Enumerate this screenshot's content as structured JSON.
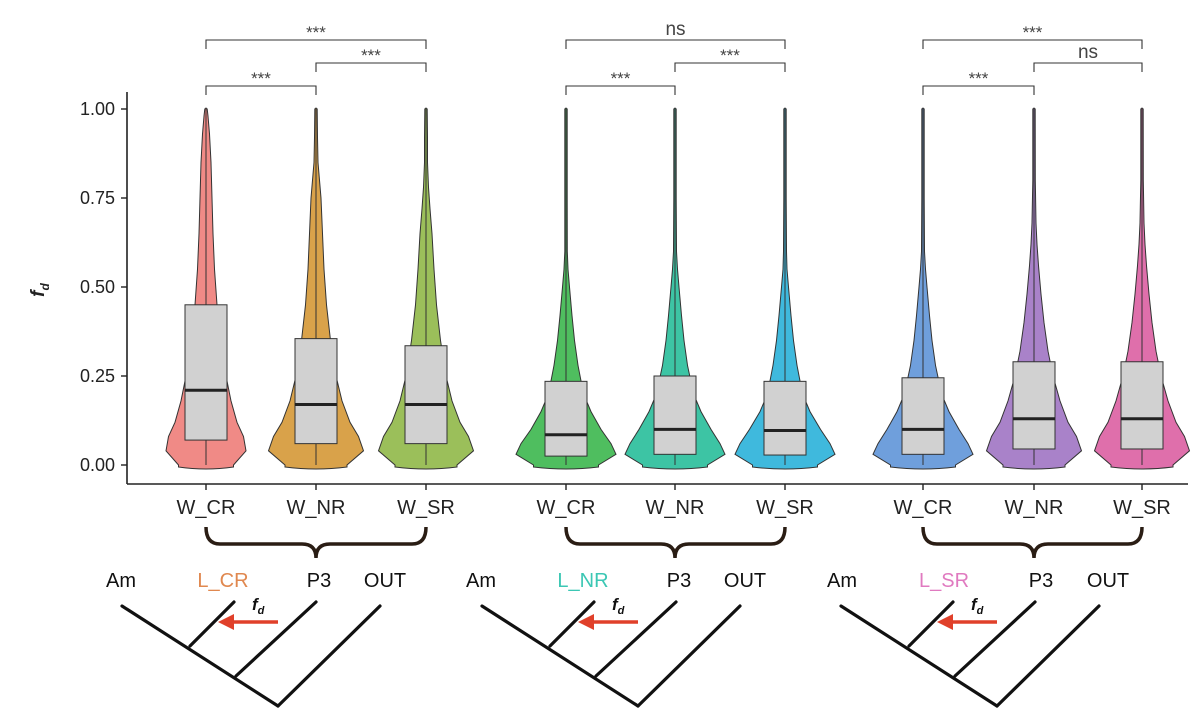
{
  "chart_data": {
    "type": "violin",
    "ylabel": "f",
    "ylabel_sub": "d",
    "ylim": [
      0,
      1
    ],
    "yticks": [
      "0.00",
      "0.25",
      "0.50",
      "0.75",
      "1.00"
    ],
    "ytick_values": [
      0,
      0.25,
      0.5,
      0.75,
      1.0
    ],
    "groups": [
      {
        "violins": [
          {
            "label": "W_CR",
            "color": "#f08a86",
            "q1": 0.07,
            "median": 0.21,
            "q3": 0.45,
            "whisker_top": 1.0,
            "whisker_bottom": 0.0,
            "density": [
              [
                0.0,
                0.55
              ],
              [
                0.04,
                0.8
              ],
              [
                0.08,
                0.75
              ],
              [
                0.12,
                0.62
              ],
              [
                0.18,
                0.5
              ],
              [
                0.25,
                0.4
              ],
              [
                0.35,
                0.3
              ],
              [
                0.45,
                0.22
              ],
              [
                0.55,
                0.17
              ],
              [
                0.65,
                0.14
              ],
              [
                0.75,
                0.12
              ],
              [
                0.85,
                0.1
              ],
              [
                0.93,
                0.07
              ],
              [
                0.98,
                0.04
              ],
              [
                1.0,
                0.01
              ]
            ]
          },
          {
            "label": "W_NR",
            "color": "#d9a24a",
            "q1": 0.06,
            "median": 0.17,
            "q3": 0.355,
            "whisker_top": 1.0,
            "whisker_bottom": 0.0,
            "density": [
              [
                0.0,
                0.62
              ],
              [
                0.04,
                0.95
              ],
              [
                0.08,
                0.85
              ],
              [
                0.12,
                0.68
              ],
              [
                0.18,
                0.52
              ],
              [
                0.25,
                0.4
              ],
              [
                0.35,
                0.29
              ],
              [
                0.45,
                0.21
              ],
              [
                0.55,
                0.16
              ],
              [
                0.65,
                0.13
              ],
              [
                0.75,
                0.1
              ],
              [
                0.8,
                0.07
              ],
              [
                0.85,
                0.04
              ],
              [
                0.92,
                0.03
              ],
              [
                1.0,
                0.02
              ]
            ]
          },
          {
            "label": "W_SR",
            "color": "#9bbf5a",
            "q1": 0.06,
            "median": 0.17,
            "q3": 0.335,
            "whisker_top": 1.0,
            "whisker_bottom": 0.0,
            "density": [
              [
                0.0,
                0.62
              ],
              [
                0.04,
                0.95
              ],
              [
                0.08,
                0.85
              ],
              [
                0.12,
                0.68
              ],
              [
                0.18,
                0.52
              ],
              [
                0.25,
                0.4
              ],
              [
                0.35,
                0.29
              ],
              [
                0.45,
                0.21
              ],
              [
                0.55,
                0.16
              ],
              [
                0.65,
                0.12
              ],
              [
                0.72,
                0.08
              ],
              [
                0.78,
                0.05
              ],
              [
                0.85,
                0.03
              ],
              [
                0.92,
                0.03
              ],
              [
                1.0,
                0.02
              ]
            ]
          }
        ],
        "comparisons": [
          {
            "from": 0,
            "to": 2,
            "label": "***",
            "level": 1
          },
          {
            "from": 1,
            "to": 2,
            "label": "***",
            "level": 2
          },
          {
            "from": 0,
            "to": 1,
            "label": "***",
            "level": 3
          }
        ],
        "tree": {
          "labels": [
            "Am",
            "L_CR",
            "P3",
            "OUT"
          ],
          "highlight_color": "#e0884f",
          "arrow_label": "f",
          "arrow_label_sub": "d"
        }
      },
      {
        "violins": [
          {
            "label": "W_CR",
            "color": "#4fbe5f",
            "q1": 0.025,
            "median": 0.085,
            "q3": 0.235,
            "whisker_top": 1.0,
            "whisker_bottom": 0.0,
            "density": [
              [
                0.0,
                0.65
              ],
              [
                0.03,
                1.0
              ],
              [
                0.06,
                0.9
              ],
              [
                0.1,
                0.7
              ],
              [
                0.15,
                0.5
              ],
              [
                0.2,
                0.35
              ],
              [
                0.28,
                0.24
              ],
              [
                0.35,
                0.17
              ],
              [
                0.42,
                0.12
              ],
              [
                0.5,
                0.07
              ],
              [
                0.55,
                0.04
              ],
              [
                0.6,
                0.025
              ],
              [
                0.75,
                0.02
              ],
              [
                1.0,
                0.015
              ]
            ]
          },
          {
            "label": "W_NR",
            "color": "#3dc4a4",
            "q1": 0.03,
            "median": 0.1,
            "q3": 0.25,
            "whisker_top": 1.0,
            "whisker_bottom": 0.0,
            "density": [
              [
                0.0,
                0.65
              ],
              [
                0.03,
                1.0
              ],
              [
                0.06,
                0.9
              ],
              [
                0.1,
                0.72
              ],
              [
                0.15,
                0.52
              ],
              [
                0.2,
                0.37
              ],
              [
                0.28,
                0.25
              ],
              [
                0.35,
                0.18
              ],
              [
                0.42,
                0.13
              ],
              [
                0.5,
                0.08
              ],
              [
                0.55,
                0.05
              ],
              [
                0.6,
                0.03
              ],
              [
                0.75,
                0.02
              ],
              [
                1.0,
                0.015
              ]
            ]
          },
          {
            "label": "W_SR",
            "color": "#3fb9dd",
            "q1": 0.028,
            "median": 0.097,
            "q3": 0.235,
            "whisker_top": 1.0,
            "whisker_bottom": 0.0,
            "density": [
              [
                0.0,
                0.65
              ],
              [
                0.03,
                1.0
              ],
              [
                0.06,
                0.9
              ],
              [
                0.1,
                0.71
              ],
              [
                0.15,
                0.5
              ],
              [
                0.2,
                0.35
              ],
              [
                0.28,
                0.24
              ],
              [
                0.35,
                0.17
              ],
              [
                0.42,
                0.12
              ],
              [
                0.5,
                0.07
              ],
              [
                0.55,
                0.04
              ],
              [
                0.6,
                0.03
              ],
              [
                0.75,
                0.02
              ],
              [
                1.0,
                0.015
              ]
            ]
          }
        ],
        "comparisons": [
          {
            "from": 0,
            "to": 2,
            "label": "ns",
            "level": 1
          },
          {
            "from": 1,
            "to": 2,
            "label": "***",
            "level": 2
          },
          {
            "from": 0,
            "to": 1,
            "label": "***",
            "level": 3
          }
        ],
        "tree": {
          "labels": [
            "Am",
            "L_NR",
            "P3",
            "OUT"
          ],
          "highlight_color": "#3cc7b4",
          "arrow_label": "f",
          "arrow_label_sub": "d"
        }
      },
      {
        "violins": [
          {
            "label": "W_CR",
            "color": "#6f9fdc",
            "q1": 0.03,
            "median": 0.1,
            "q3": 0.245,
            "whisker_top": 1.0,
            "whisker_bottom": 0.0,
            "density": [
              [
                0.0,
                0.65
              ],
              [
                0.03,
                1.0
              ],
              [
                0.06,
                0.9
              ],
              [
                0.1,
                0.72
              ],
              [
                0.15,
                0.52
              ],
              [
                0.2,
                0.37
              ],
              [
                0.28,
                0.25
              ],
              [
                0.35,
                0.18
              ],
              [
                0.42,
                0.13
              ],
              [
                0.5,
                0.08
              ],
              [
                0.55,
                0.05
              ],
              [
                0.6,
                0.03
              ],
              [
                0.75,
                0.02
              ],
              [
                1.0,
                0.015
              ]
            ]
          },
          {
            "label": "W_NR",
            "color": "#a982c9",
            "q1": 0.045,
            "median": 0.13,
            "q3": 0.29,
            "whisker_top": 1.0,
            "whisker_bottom": 0.0,
            "density": [
              [
                0.0,
                0.62
              ],
              [
                0.04,
                0.95
              ],
              [
                0.08,
                0.85
              ],
              [
                0.12,
                0.68
              ],
              [
                0.18,
                0.52
              ],
              [
                0.25,
                0.38
              ],
              [
                0.32,
                0.28
              ],
              [
                0.4,
                0.2
              ],
              [
                0.48,
                0.14
              ],
              [
                0.56,
                0.09
              ],
              [
                0.62,
                0.06
              ],
              [
                0.68,
                0.04
              ],
              [
                0.8,
                0.025
              ],
              [
                1.0,
                0.02
              ]
            ]
          },
          {
            "label": "W_SR",
            "color": "#df6fab",
            "q1": 0.045,
            "median": 0.13,
            "q3": 0.29,
            "whisker_top": 1.0,
            "whisker_bottom": 0.0,
            "density": [
              [
                0.0,
                0.62
              ],
              [
                0.04,
                0.95
              ],
              [
                0.08,
                0.85
              ],
              [
                0.12,
                0.68
              ],
              [
                0.18,
                0.52
              ],
              [
                0.25,
                0.38
              ],
              [
                0.32,
                0.28
              ],
              [
                0.4,
                0.2
              ],
              [
                0.48,
                0.14
              ],
              [
                0.56,
                0.09
              ],
              [
                0.62,
                0.06
              ],
              [
                0.68,
                0.04
              ],
              [
                0.8,
                0.025
              ],
              [
                1.0,
                0.02
              ]
            ]
          }
        ],
        "comparisons": [
          {
            "from": 0,
            "to": 2,
            "label": "***",
            "level": 1
          },
          {
            "from": 1,
            "to": 2,
            "label": "ns",
            "level": 2
          },
          {
            "from": 0,
            "to": 1,
            "label": "***",
            "level": 3
          }
        ],
        "tree": {
          "labels": [
            "Am",
            "L_SR",
            "P3",
            "OUT"
          ],
          "highlight_color": "#e07ac0",
          "arrow_label": "f",
          "arrow_label_sub": "d"
        }
      }
    ],
    "box_color": "#d1d1d1",
    "arrow_color": "#e0402a"
  }
}
